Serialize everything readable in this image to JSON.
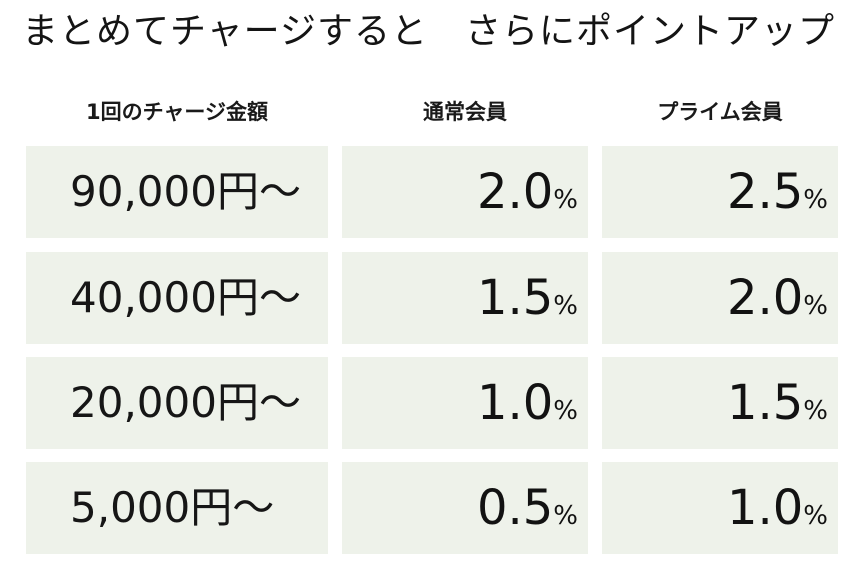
{
  "title": "まとめてチャージすると　さらにポイントアップ",
  "headers": {
    "amount": "1回のチャージ金額",
    "regular": "通常会員",
    "prime": "プライム会員"
  },
  "unit": "%",
  "rows": [
    {
      "amount": "90,000円～",
      "regular": "2.0",
      "prime": "2.5"
    },
    {
      "amount": "40,000円～",
      "regular": "1.5",
      "prime": "2.0"
    },
    {
      "amount": "20,000円～",
      "regular": "1.0",
      "prime": "1.5"
    },
    {
      "amount": "5,000円～",
      "regular": "0.5",
      "prime": "1.0"
    }
  ],
  "colors": {
    "cell_background": "#eef2ea",
    "text": "#111111"
  }
}
